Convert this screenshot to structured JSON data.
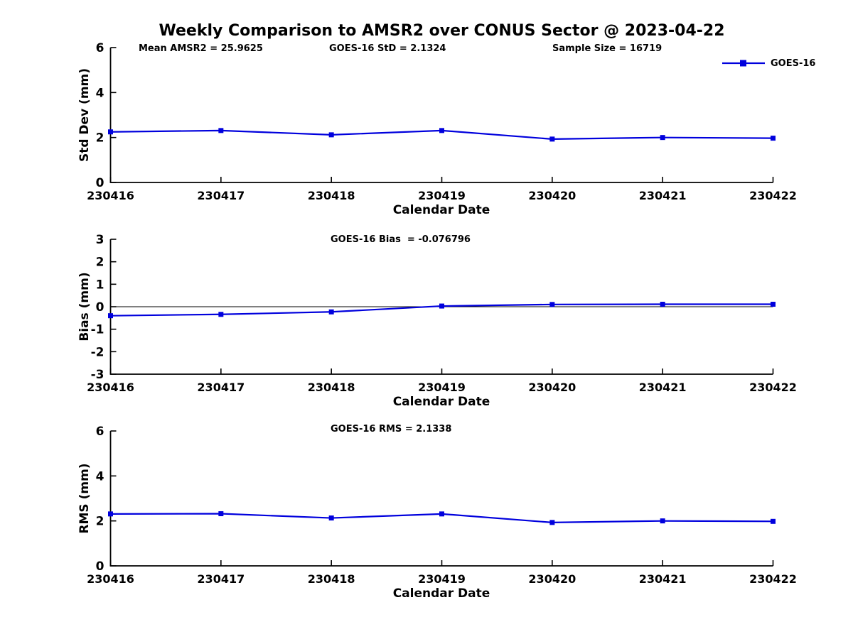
{
  "page": {
    "title": "Weekly Comparison to AMSR2 over CONUS Sector @ 2023-04-22"
  },
  "colors": {
    "series": "#0000dd",
    "axis": "#000000",
    "text": "#000000",
    "background": "#ffffff"
  },
  "legend": {
    "label": "GOES-16"
  },
  "chart_data": [
    {
      "type": "line",
      "name": "std-dev",
      "annotations": [
        {
          "text": "Mean AMSR2 = 25.9625"
        },
        {
          "text": "GOES-16 StD = 2.1324"
        },
        {
          "text": "Sample Size = 16719"
        }
      ],
      "categories": [
        "230416",
        "230417",
        "230418",
        "230419",
        "230420",
        "230421",
        "230422"
      ],
      "series": [
        {
          "name": "GOES-16",
          "values": [
            2.25,
            2.31,
            2.12,
            2.31,
            1.93,
            2.0,
            1.97
          ]
        }
      ],
      "xlabel": "Calendar Date",
      "ylabel": "Std Dev (mm)",
      "ylim": [
        0,
        6
      ],
      "yticks": [
        0,
        2,
        4,
        6
      ],
      "grid": false,
      "legend_position": "top-right",
      "marker": "square"
    },
    {
      "type": "line",
      "name": "bias",
      "annotations": [
        {
          "text": "GOES-16 Bias  = -0.076796"
        }
      ],
      "categories": [
        "230416",
        "230417",
        "230418",
        "230419",
        "230420",
        "230421",
        "230422"
      ],
      "series": [
        {
          "name": "GOES-16",
          "values": [
            -0.4,
            -0.34,
            -0.23,
            0.03,
            0.1,
            0.11,
            0.11
          ]
        }
      ],
      "xlabel": "Calendar Date",
      "ylabel": "Bias (mm)",
      "ylim": [
        -3,
        3
      ],
      "yticks": [
        -3,
        -2,
        -1,
        0,
        1,
        2,
        3
      ],
      "zero_line": true,
      "grid": false,
      "marker": "square"
    },
    {
      "type": "line",
      "name": "rms",
      "annotations": [
        {
          "text": "GOES-16 RMS = 2.1338"
        }
      ],
      "categories": [
        "230416",
        "230417",
        "230418",
        "230419",
        "230420",
        "230421",
        "230422"
      ],
      "series": [
        {
          "name": "GOES-16",
          "values": [
            2.31,
            2.32,
            2.13,
            2.31,
            1.93,
            2.0,
            1.98
          ]
        }
      ],
      "xlabel": "Calendar Date",
      "ylabel": "RMS (mm)",
      "ylim": [
        0,
        6
      ],
      "yticks": [
        0,
        2,
        4,
        6
      ],
      "grid": false,
      "marker": "square"
    }
  ]
}
